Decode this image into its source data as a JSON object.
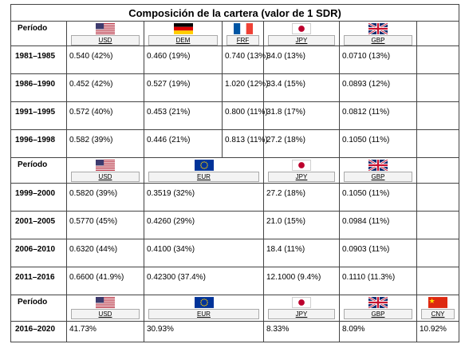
{
  "title": "Composición de la cartera (valor de 1 SDR)",
  "sections": [
    {
      "header": {
        "label": "Período",
        "currencies": [
          "USD",
          "DEM",
          "FRF",
          "JPY",
          "GBP"
        ]
      },
      "rows": [
        {
          "period": "1981–1985",
          "values": [
            "0.540 (42%)",
            "0.460 (19%)",
            "0.740 (13%)",
            "34.0 (13%)",
            "0.0710 (13%)"
          ]
        },
        {
          "period": "1986–1990",
          "values": [
            "0.452 (42%)",
            "0.527 (19%)",
            "1.020 (12%)",
            "33.4 (15%)",
            "0.0893 (12%)"
          ]
        },
        {
          "period": "1991–1995",
          "values": [
            "0.572 (40%)",
            "0.453 (21%)",
            "0.800 (11%)",
            "31.8 (17%)",
            "0.0812 (11%)"
          ]
        },
        {
          "period": "1996–1998",
          "values": [
            "0.582 (39%)",
            "0.446 (21%)",
            "0.813 (11%)",
            "27.2 (18%)",
            "0.1050 (11%)"
          ]
        }
      ]
    },
    {
      "header": {
        "label": "Período",
        "currencies": [
          "USD",
          "EUR",
          "JPY",
          "GBP"
        ]
      },
      "rows": [
        {
          "period": "1999–2000",
          "values": [
            "0.5820 (39%)",
            "0.3519 (32%)",
            "27.2 (18%)",
            "0.1050 (11%)"
          ]
        },
        {
          "period": "2001–2005",
          "values": [
            "0.5770 (45%)",
            "0.4260 (29%)",
            "21.0 (15%)",
            "0.0984 (11%)"
          ]
        },
        {
          "period": "2006–2010",
          "values": [
            "0.6320 (44%)",
            "0.4100 (34%)",
            "18.4 (11%)",
            "0.0903 (11%)"
          ]
        },
        {
          "period": "2011–2016",
          "values": [
            "0.6600 (41.9%)",
            "0.42300 (37.4%)",
            "12.1000 (9.4%)",
            "0.1110 (11.3%)"
          ]
        }
      ]
    },
    {
      "header": {
        "label": "Período",
        "currencies": [
          "USD",
          "EUR",
          "JPY",
          "GBP",
          "CNY"
        ]
      },
      "rows": [
        {
          "period": "2016–2020",
          "values": [
            "41.73%",
            "30.93%",
            "8.33%",
            "8.09%",
            "10.92%"
          ]
        }
      ]
    }
  ]
}
